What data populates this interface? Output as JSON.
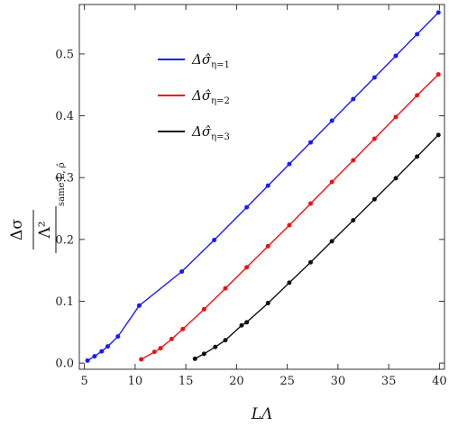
{
  "chart_data": {
    "type": "line",
    "title": "",
    "xlabel": "LΛ",
    "ylabel_numerator": "Δσ",
    "ylabel_denominator": "Λ²",
    "ylabel_subscript": "same L̂, ρ̂",
    "xlim": [
      4.5,
      40.5
    ],
    "ylim": [
      -0.01,
      0.58
    ],
    "xticks": [
      "5",
      "10",
      "15",
      "20",
      "25",
      "30",
      "35",
      "40"
    ],
    "yticks": [
      "0.0",
      "0.1",
      "0.2",
      "0.3",
      "0.4",
      "0.5"
    ],
    "grid": false,
    "legend_position": "upper-left",
    "series": [
      {
        "name": "Δσ̂η=1",
        "name_main": "Δσ̂",
        "name_sub": "η=1",
        "color": "#1a1aff",
        "x": [
          5.3,
          6.0,
          6.7,
          7.3,
          8.3,
          10.4,
          14.6,
          17.8,
          21.0,
          23.1,
          25.2,
          27.3,
          29.4,
          31.5,
          33.6,
          35.7,
          37.8,
          39.9
        ],
        "y": [
          0.004,
          0.011,
          0.019,
          0.027,
          0.043,
          0.093,
          0.148,
          0.199,
          0.252,
          0.287,
          0.322,
          0.357,
          0.392,
          0.427,
          0.462,
          0.497,
          0.532,
          0.567
        ]
      },
      {
        "name": "Δσ̂η=2",
        "name_main": "Δσ̂",
        "name_sub": "η=2",
        "color": "#ee1111",
        "x": [
          10.6,
          11.9,
          12.5,
          13.6,
          14.7,
          16.8,
          18.9,
          21.0,
          23.1,
          25.2,
          27.3,
          29.4,
          31.5,
          33.6,
          35.7,
          37.8,
          39.9
        ],
        "y": [
          0.006,
          0.018,
          0.024,
          0.039,
          0.055,
          0.087,
          0.121,
          0.155,
          0.189,
          0.223,
          0.258,
          0.293,
          0.328,
          0.363,
          0.398,
          0.433,
          0.467
        ]
      },
      {
        "name": "Δσ̂η=3",
        "name_main": "Δσ̂",
        "name_sub": "η=3",
        "color": "#111111",
        "x": [
          15.9,
          16.8,
          17.9,
          18.9,
          20.5,
          21.0,
          23.1,
          25.2,
          27.3,
          29.4,
          31.5,
          33.6,
          35.7,
          37.8,
          39.9
        ],
        "y": [
          0.007,
          0.015,
          0.026,
          0.037,
          0.061,
          0.066,
          0.097,
          0.13,
          0.163,
          0.197,
          0.231,
          0.265,
          0.299,
          0.334,
          0.369
        ]
      }
    ]
  }
}
